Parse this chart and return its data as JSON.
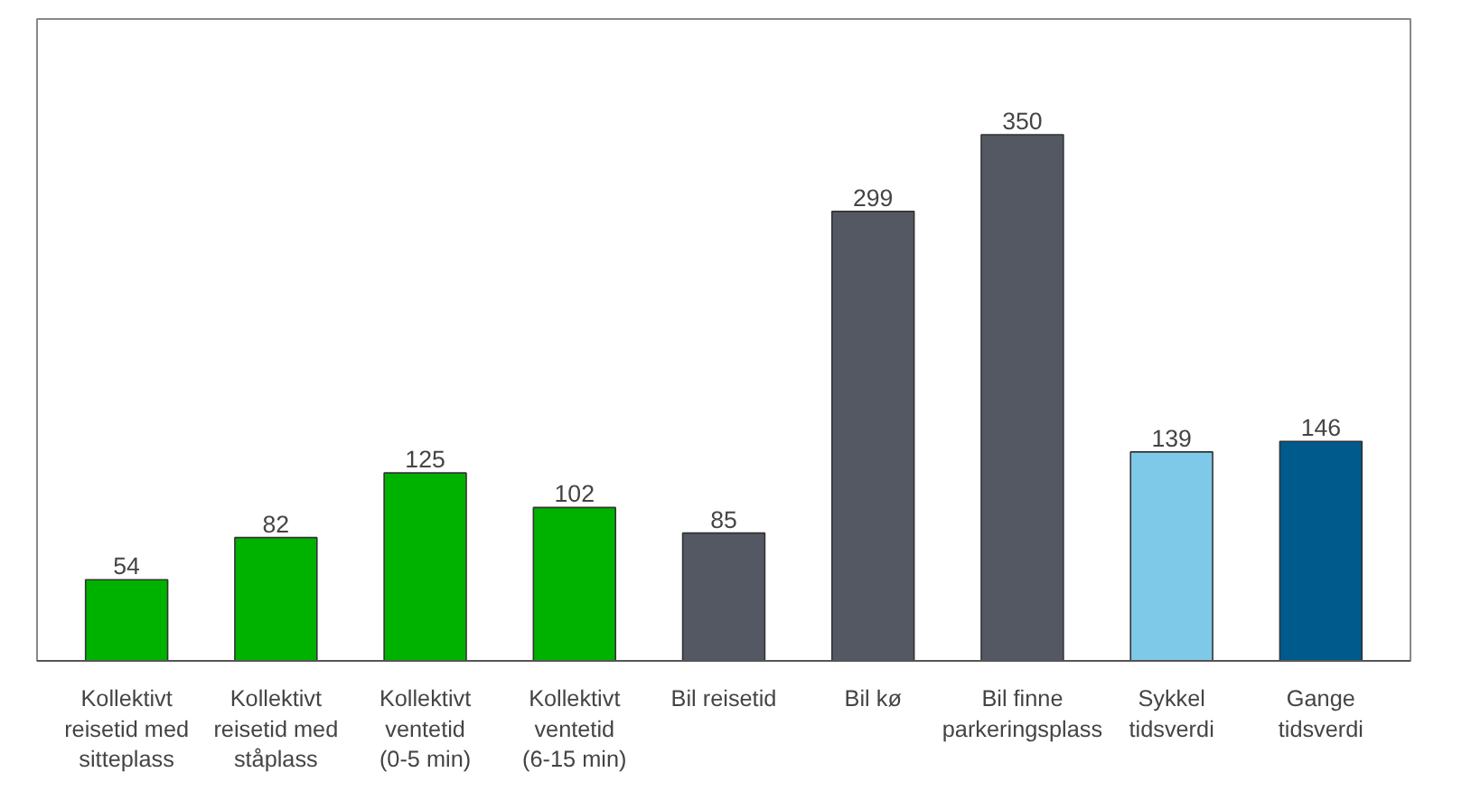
{
  "chart_data": {
    "type": "bar",
    "categories": [
      "Kollektivt reisetid med sitteplass",
      "Kollektivt reisetid med ståplass",
      "Kollektivt ventetid (0-5 min)",
      "Kollektivt ventetid (6-15 min)",
      "Bil reisetid",
      "Bil kø",
      "Bil finne parkeringsplass",
      "Sykkel tidsverdi",
      "Gange tidsverdi"
    ],
    "values": [
      54,
      82,
      125,
      102,
      85,
      299,
      350,
      139,
      146
    ],
    "colors": [
      "#00b200",
      "#00b200",
      "#00b200",
      "#00b200",
      "#545863",
      "#545863",
      "#545863",
      "#7ec8e8",
      "#005a8c"
    ],
    "data_labels": true,
    "grid": false
  }
}
